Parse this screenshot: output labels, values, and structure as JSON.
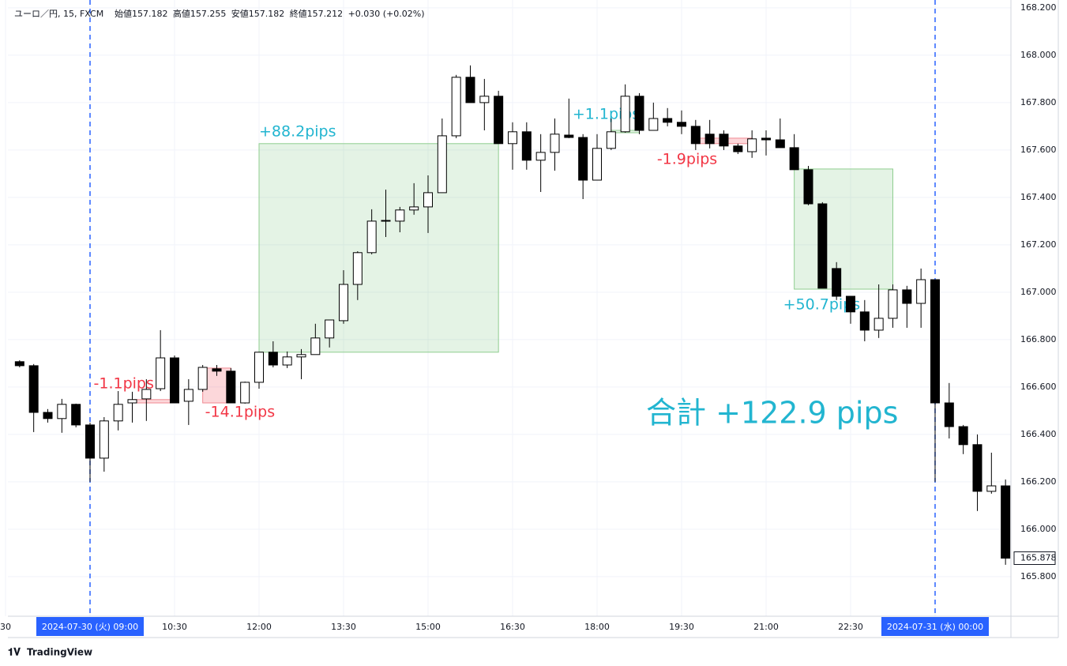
{
  "chart_data": {
    "type": "candlestick",
    "header": {
      "symbol": "ユーロ／円, 15, FXCM",
      "fields": [
        "始値157.182",
        "高値157.255",
        "安値157.182",
        "終値157.212",
        "+0.030 (+0.02%)"
      ]
    },
    "brand": "TradingView",
    "annotation": "合計 +122.9 pips",
    "up_color": "#ffffff",
    "down_color": "#000000",
    "wick_color": "#000000",
    "x": [
      7.75,
      8,
      8.25,
      8.5,
      8.75,
      9,
      9.25,
      9.5,
      9.75,
      10,
      10.25,
      10.5,
      10.75,
      11,
      11.25,
      11.5,
      11.75,
      12,
      12.25,
      12.5,
      12.75,
      13,
      13.25,
      13.5,
      13.75,
      14,
      14.25,
      14.5,
      14.75,
      15,
      15.25,
      15.5,
      15.75,
      16,
      16.25,
      16.5,
      16.75,
      17,
      17.25,
      17.5,
      17.75,
      18,
      18.25,
      18.5,
      18.75,
      19,
      19.25,
      19.5,
      19.75,
      20,
      20.25,
      20.5,
      20.75,
      21,
      21.25,
      21.5,
      21.75,
      22,
      22.25,
      22.5,
      22.75,
      23,
      23.25,
      23.5,
      23.75,
      24,
      24.25,
      24.5,
      24.75,
      25,
      25.25
    ],
    "open": [
      166.707,
      166.69,
      166.493,
      166.467,
      166.527,
      166.44,
      166.3,
      166.457,
      166.533,
      166.55,
      166.593,
      166.723,
      166.54,
      166.59,
      166.677,
      166.667,
      166.533,
      166.62,
      166.747,
      166.693,
      166.727,
      166.737,
      166.807,
      166.88,
      167.033,
      167.167,
      167.3,
      167.3,
      167.347,
      167.36,
      167.42,
      167.66,
      167.907,
      167.8,
      167.827,
      167.627,
      167.677,
      167.557,
      167.59,
      167.663,
      167.653,
      167.473,
      167.607,
      167.677,
      167.827,
      167.683,
      167.733,
      167.717,
      167.7,
      167.667,
      167.667,
      167.617,
      167.593,
      167.65,
      167.643,
      167.61,
      167.517,
      167.373,
      167.1,
      166.983,
      166.917,
      166.84,
      166.89,
      167.01,
      166.953,
      167.053,
      166.533,
      166.433,
      166.357,
      166.16,
      166.183
    ],
    "high": [
      166.713,
      166.697,
      166.507,
      166.55,
      166.53,
      166.45,
      166.473,
      166.583,
      166.58,
      166.633,
      166.84,
      166.733,
      166.633,
      166.693,
      166.693,
      166.68,
      166.623,
      166.747,
      166.793,
      166.75,
      166.76,
      166.867,
      166.883,
      167.093,
      167.173,
      167.35,
      167.433,
      167.36,
      167.46,
      167.493,
      167.733,
      167.917,
      167.957,
      167.9,
      167.85,
      167.717,
      167.717,
      167.667,
      167.733,
      167.817,
      167.667,
      167.667,
      167.733,
      167.877,
      167.84,
      167.8,
      167.777,
      167.767,
      167.727,
      167.727,
      167.683,
      167.627,
      167.683,
      167.683,
      167.733,
      167.667,
      167.533,
      167.38,
      167.127,
      166.983,
      166.967,
      167.033,
      167.033,
      167.027,
      167.1,
      167.053,
      166.617,
      166.44,
      166.4,
      166.323,
      166.21
    ],
    "low": [
      166.683,
      166.41,
      166.45,
      166.407,
      166.43,
      166.2,
      166.243,
      166.417,
      166.45,
      166.457,
      166.583,
      166.533,
      166.44,
      166.58,
      166.647,
      166.533,
      166.53,
      166.593,
      166.683,
      166.68,
      166.633,
      166.737,
      166.767,
      166.867,
      166.967,
      167.16,
      167.233,
      167.253,
      167.327,
      167.25,
      167.42,
      167.65,
      167.8,
      167.683,
      167.627,
      167.517,
      167.517,
      167.423,
      167.513,
      167.65,
      167.393,
      167.473,
      167.6,
      167.673,
      167.667,
      167.683,
      167.7,
      167.667,
      167.6,
      167.607,
      167.6,
      167.583,
      167.567,
      167.577,
      167.61,
      167.517,
      167.367,
      167.017,
      166.967,
      166.867,
      166.793,
      166.807,
      166.85,
      166.85,
      166.85,
      166.2,
      166.383,
      166.317,
      166.077,
      166.15,
      165.85
    ],
    "close": [
      166.69,
      166.493,
      166.467,
      166.527,
      166.44,
      166.3,
      166.457,
      166.527,
      166.547,
      166.59,
      166.723,
      166.533,
      166.59,
      166.683,
      166.667,
      166.533,
      166.62,
      166.747,
      166.693,
      166.727,
      166.737,
      166.807,
      166.883,
      167.033,
      167.167,
      167.3,
      167.303,
      167.347,
      167.36,
      167.42,
      167.66,
      167.907,
      167.8,
      167.827,
      167.627,
      167.677,
      167.557,
      167.59,
      167.667,
      167.653,
      167.473,
      167.607,
      167.677,
      167.827,
      167.683,
      167.733,
      167.717,
      167.7,
      167.627,
      167.627,
      167.617,
      167.593,
      167.647,
      167.643,
      167.61,
      167.517,
      167.373,
      167.017,
      166.983,
      166.917,
      166.84,
      166.89,
      167.01,
      166.953,
      167.053,
      166.533,
      166.433,
      166.357,
      166.16,
      166.183,
      165.878
    ],
    "xlim": [
      7.542,
      25.346
    ],
    "ylim": [
      165.633,
      168.233
    ],
    "yticks": [
      {
        "value": 165.8,
        "label": "165.800"
      },
      {
        "value": 166,
        "label": "166.000"
      },
      {
        "value": 166.2,
        "label": "166.200"
      },
      {
        "value": 166.4,
        "label": "166.400"
      },
      {
        "value": 166.6,
        "label": "166.600"
      },
      {
        "value": 166.8,
        "label": "166.800"
      },
      {
        "value": 167,
        "label": "167.000"
      },
      {
        "value": 167.2,
        "label": "167.200"
      },
      {
        "value": 167.4,
        "label": "167.400"
      },
      {
        "value": 167.6,
        "label": "167.600"
      },
      {
        "value": 167.8,
        "label": "167.800"
      },
      {
        "value": 168,
        "label": "168.000"
      },
      {
        "value": 168.2,
        "label": "168.200"
      }
    ],
    "xticks": [
      {
        "value": 7.5,
        "label": "30"
      },
      {
        "value": 9,
        "label": "2024-07-30 (火)   09:00"
      },
      {
        "value": 10.5,
        "label": "10:30"
      },
      {
        "value": 12,
        "label": "12:00"
      },
      {
        "value": 13.5,
        "label": "13:30"
      },
      {
        "value": 15,
        "label": "15:00"
      },
      {
        "value": 16.5,
        "label": "16:30"
      },
      {
        "value": 18,
        "label": "18:00"
      },
      {
        "value": 19.5,
        "label": "19:30"
      },
      {
        "value": 21,
        "label": "21:00"
      },
      {
        "value": 22.5,
        "label": "22:30"
      },
      {
        "value": 24,
        "label": "2024-07-31 (水)   00:00"
      }
    ],
    "session_lines": [
      9,
      24
    ],
    "grid": true,
    "trades": [
      {
        "label": "-1.1pips",
        "x": [
          9.75,
          10.5
        ],
        "prices": [
          166.547,
          166.533
        ],
        "color": "#f23645",
        "label_pos": "above-left"
      },
      {
        "label": "-14.1pips",
        "x": [
          11,
          11.5
        ],
        "prices": [
          166.68,
          166.533
        ],
        "color": "#f23645",
        "label_pos": "below"
      },
      {
        "label": "+88.2pips",
        "x": [
          12,
          16.25
        ],
        "prices": [
          166.747,
          167.627
        ],
        "color": "#22b5d0",
        "label_pos": "above"
      },
      {
        "label": "+1.1pips",
        "x": [
          18.25,
          18.75
        ],
        "prices": [
          167.683,
          167.673
        ],
        "color": "#22b5d0",
        "label_pos": "above-left"
      },
      {
        "label": "-1.9pips",
        "x": [
          19.75,
          20.75
        ],
        "prices": [
          167.65,
          167.627
        ],
        "color": "#f23645",
        "label_pos": "below-left"
      },
      {
        "label": "+50.7pips",
        "x": [
          21.5,
          23.25
        ],
        "prices": [
          167.52,
          167.013
        ],
        "color": "#22b5d0",
        "label_pos": "below-left"
      }
    ]
  }
}
